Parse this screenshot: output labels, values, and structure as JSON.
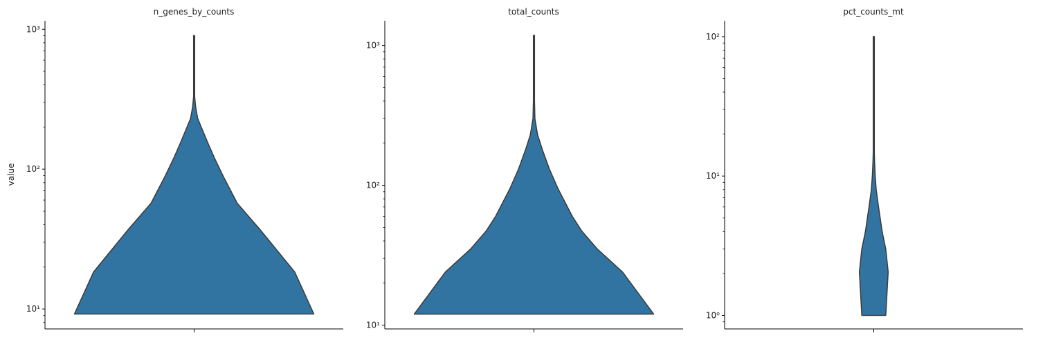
{
  "figure": {
    "ylabel": "value"
  },
  "chart_data": [
    {
      "type": "violin",
      "title": "n_genes_by_counts",
      "ylabel": "value",
      "yscale": "log",
      "ylim": [
        7.2,
        1150
      ],
      "yticks": [
        10,
        100,
        1000
      ],
      "ytick_labels": [
        "10¹",
        "10²",
        "10³"
      ],
      "fill_color": "#3274a1",
      "edge_color": "#3a3a3a",
      "density_profile": [
        {
          "value": 9.2,
          "width": 1.0
        },
        {
          "value": 18.4,
          "width": 0.84
        },
        {
          "value": 37,
          "width": 0.55
        },
        {
          "value": 57,
          "width": 0.36
        },
        {
          "value": 90,
          "width": 0.24
        },
        {
          "value": 120,
          "width": 0.17
        },
        {
          "value": 150,
          "width": 0.12
        },
        {
          "value": 190,
          "width": 0.07
        },
        {
          "value": 230,
          "width": 0.03
        },
        {
          "value": 280,
          "width": 0.012
        },
        {
          "value": 330,
          "width": 0.004
        },
        {
          "value": 900,
          "width": 0.002
        }
      ]
    },
    {
      "type": "violin",
      "title": "total_counts",
      "yscale": "log",
      "ylim": [
        9.4,
        1500
      ],
      "yticks": [
        10,
        100,
        1000
      ],
      "ytick_labels": [
        "10¹",
        "10²",
        "10³"
      ],
      "fill_color": "#3274a1",
      "edge_color": "#3a3a3a",
      "density_profile": [
        {
          "value": 12,
          "width": 1.0
        },
        {
          "value": 24,
          "width": 0.74
        },
        {
          "value": 35,
          "width": 0.53
        },
        {
          "value": 47,
          "width": 0.4
        },
        {
          "value": 60,
          "width": 0.32
        },
        {
          "value": 95,
          "width": 0.2
        },
        {
          "value": 130,
          "width": 0.13
        },
        {
          "value": 180,
          "width": 0.07
        },
        {
          "value": 230,
          "width": 0.03
        },
        {
          "value": 300,
          "width": 0.008
        },
        {
          "value": 400,
          "width": 0.003
        },
        {
          "value": 1180,
          "width": 0.002
        }
      ]
    },
    {
      "type": "violin",
      "title": "pct_counts_mt",
      "yscale": "log",
      "ylim": [
        0.8,
        130
      ],
      "yticks": [
        1,
        10,
        100
      ],
      "ytick_labels": [
        "10⁰",
        "10¹",
        "10²"
      ],
      "fill_color": "#3274a1",
      "edge_color": "#3a3a3a",
      "density_profile": [
        {
          "value": 1.0,
          "width": 0.1
        },
        {
          "value": 2.05,
          "width": 0.12
        },
        {
          "value": 3.0,
          "width": 0.1
        },
        {
          "value": 4.0,
          "width": 0.07
        },
        {
          "value": 6.0,
          "width": 0.04
        },
        {
          "value": 8.0,
          "width": 0.02
        },
        {
          "value": 10.0,
          "width": 0.012
        },
        {
          "value": 12.5,
          "width": 0.007
        },
        {
          "value": 15.0,
          "width": 0.004
        },
        {
          "value": 20.0,
          "width": 0.002
        },
        {
          "value": 100,
          "width": 0.002
        }
      ]
    }
  ]
}
